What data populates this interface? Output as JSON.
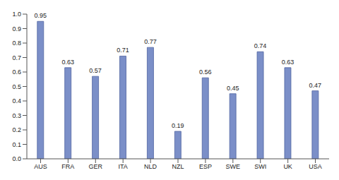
{
  "chart_data": {
    "type": "bar",
    "categories": [
      "AUS",
      "FRA",
      "GER",
      "ITA",
      "NLD",
      "NZL",
      "ESP",
      "SWE",
      "SWI",
      "UK",
      "USA"
    ],
    "values": [
      0.95,
      0.63,
      0.57,
      0.71,
      0.77,
      0.19,
      0.56,
      0.45,
      0.74,
      0.63,
      0.47
    ],
    "color": "#7b8fc8",
    "ylim": [
      0,
      1
    ],
    "yticks": [
      {
        "value": 0,
        "label": "0.0"
      },
      0.1,
      0.2,
      0.3,
      0.4,
      0.5,
      0.6,
      0.7,
      0.8,
      0.9,
      {
        "value": 1,
        "label": "1.0"
      }
    ],
    "grid": false,
    "data_labels": true
  }
}
